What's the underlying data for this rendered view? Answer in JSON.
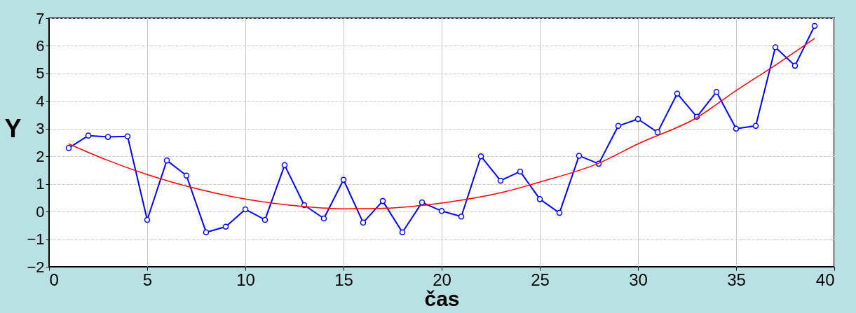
{
  "chart_data": {
    "type": "line",
    "xlabel": "čas",
    "ylabel": "Y",
    "xlim": [
      0,
      40
    ],
    "xticks": [
      0,
      5,
      10,
      15,
      20,
      25,
      30,
      35,
      40
    ],
    "ylim": [
      -2,
      7
    ],
    "yticks": [
      -2,
      -1,
      0,
      1,
      2,
      3,
      4,
      5,
      6,
      7
    ],
    "grid": true,
    "series": [
      {
        "color": "#0000ff",
        "marker": "circle",
        "line_style": "solid",
        "x": [
          1,
          2,
          3,
          4,
          5,
          6,
          7,
          8,
          9,
          10,
          11,
          12,
          13,
          14,
          15,
          16,
          17,
          18,
          19,
          20,
          21,
          22,
          23,
          24,
          25,
          26,
          27,
          28,
          29,
          30,
          31,
          32,
          33,
          34,
          35,
          36,
          37,
          38,
          39
        ],
        "values": [
          2.3,
          2.75,
          2.7,
          2.72,
          -0.3,
          1.85,
          1.3,
          -0.75,
          -0.55,
          0.08,
          -0.3,
          1.68,
          0.23,
          -0.25,
          1.15,
          -0.4,
          0.38,
          -0.75,
          0.33,
          0.02,
          -0.18,
          2.0,
          1.12,
          1.45,
          0.45,
          -0.05,
          2.02,
          1.73,
          3.1,
          3.35,
          2.87,
          4.27,
          3.43,
          4.33,
          3.0,
          3.1,
          5.95,
          5.28,
          6.72
        ]
      },
      {
        "color": "#ff0000",
        "marker": "none",
        "line_style": "solid",
        "x": [
          1,
          3,
          5,
          7,
          10,
          13,
          15,
          17,
          20,
          23,
          25,
          28,
          30,
          33,
          35,
          37,
          39
        ],
        "values": [
          2.45,
          1.85,
          1.34,
          0.92,
          0.45,
          0.18,
          0.1,
          0.12,
          0.31,
          0.68,
          1.07,
          1.75,
          2.45,
          3.4,
          4.38,
          5.3,
          6.27
        ]
      }
    ]
  }
}
